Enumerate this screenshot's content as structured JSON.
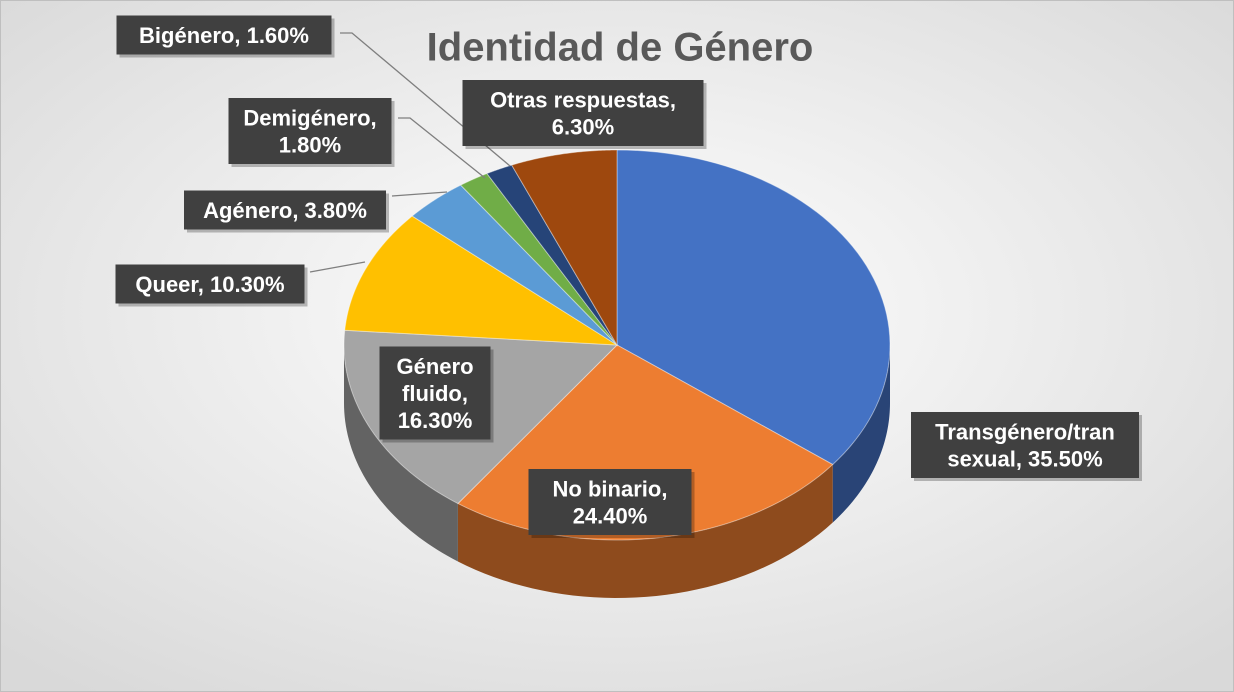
{
  "chart_data": {
    "type": "pie3d",
    "title": "Identidad de Género",
    "values": [
      35.5,
      24.4,
      16.3,
      10.3,
      3.8,
      1.8,
      1.6,
      6.3
    ],
    "value_labels": [
      "Transgénero/transexual, 35.50%",
      "No binario, 24.40%",
      "Género fluido, 16.30%",
      "Queer, 10.30%",
      "Agénero, 3.80%",
      "Demigénero, 1.80%",
      "Bigénero, 1.60%",
      "Otras respuestas, 6.30%"
    ],
    "colors": [
      "#4472c4",
      "#ed7d31",
      "#a5a5a5",
      "#ffc000",
      "#5b9bd5",
      "#70ad47",
      "#264478",
      "#9e480e"
    ]
  }
}
